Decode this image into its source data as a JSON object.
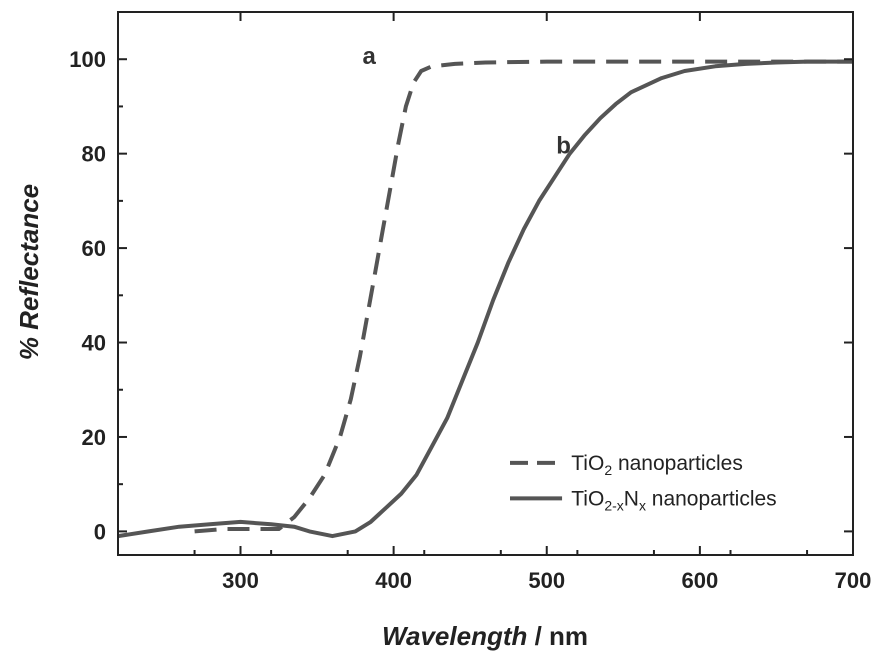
{
  "chart_data": {
    "type": "line",
    "xlabel": {
      "italic": "Wavelength",
      "plain": " / nm"
    },
    "ylabel": "% Reflectance",
    "xlim": [
      220,
      700
    ],
    "ylim": [
      -5,
      110
    ],
    "xticks": [
      300,
      400,
      500,
      600,
      700
    ],
    "yticks": [
      0,
      20,
      40,
      60,
      80,
      100
    ],
    "grid": false,
    "legend_position": "bottom-right",
    "series": [
      {
        "name": "TiO2 nanoparticles",
        "label_parts": {
          "main": "TiO",
          "sub": "2",
          "rest": " nanoparticles"
        },
        "curve_label": "a",
        "style": "dashed",
        "color": "#555555",
        "x": [
          270,
          290,
          310,
          325,
          335,
          345,
          355,
          365,
          372,
          378,
          383,
          388,
          393,
          398,
          403,
          408,
          413,
          418,
          425,
          440,
          460,
          500,
          550,
          600,
          650,
          700
        ],
        "y": [
          0,
          0.5,
          0.5,
          0.5,
          3,
          7,
          12,
          20,
          28,
          37,
          46,
          55,
          64,
          73,
          82,
          90,
          95,
          97.5,
          98.5,
          99,
          99.3,
          99.5,
          99.5,
          99.5,
          99.5,
          99.5
        ]
      },
      {
        "name": "TiO2-xNx nanoparticles",
        "label_parts": {
          "main": "TiO",
          "sub": "2-x",
          "mid": "N",
          "sub2": "x",
          "rest": " nanoparticles"
        },
        "curve_label": "b",
        "style": "solid",
        "color": "#555555",
        "x": [
          220,
          240,
          260,
          280,
          300,
          320,
          335,
          345,
          360,
          375,
          385,
          395,
          405,
          415,
          425,
          435,
          445,
          455,
          465,
          475,
          485,
          495,
          505,
          515,
          525,
          535,
          545,
          555,
          565,
          575,
          590,
          610,
          630,
          650,
          670,
          700
        ],
        "y": [
          -1,
          0,
          1,
          1.5,
          2,
          1.5,
          1,
          0,
          -1,
          0,
          2,
          5,
          8,
          12,
          18,
          24,
          32,
          40,
          49,
          57,
          64,
          70,
          75,
          80,
          84,
          87.5,
          90.5,
          93,
          94.5,
          96,
          97.5,
          98.5,
          99,
          99.3,
          99.5,
          99.5
        ]
      }
    ],
    "annotations": [
      {
        "text": "a",
        "x": 384,
        "y": 99
      },
      {
        "text": "b",
        "x": 511,
        "y": 80
      }
    ]
  }
}
